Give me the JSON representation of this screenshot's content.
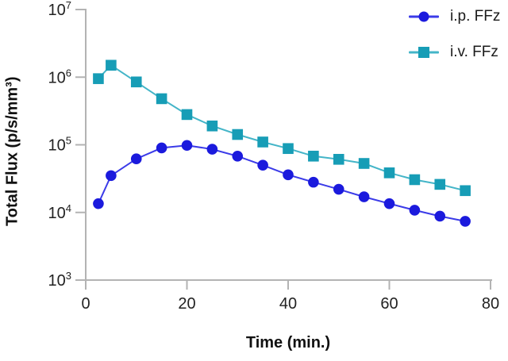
{
  "chart_data": {
    "type": "line",
    "title": "",
    "xlabel": "Time (min.)",
    "ylabel": "Total Flux (p/s/mm³)",
    "y_scale": "log",
    "xlim": [
      0,
      80
    ],
    "ylim": [
      1000,
      10000000
    ],
    "grid": false,
    "legend_position": "top-right",
    "axis_color": "#b3b3b3",
    "tick_text_color": "#222222",
    "x": [
      2.5,
      5,
      10,
      15,
      20,
      25,
      30,
      35,
      40,
      45,
      50,
      55,
      60,
      65,
      70,
      75
    ],
    "series": [
      {
        "name": "i.p. FFz",
        "marker": "circle",
        "marker_color": "#1b1add",
        "line_color": "#3b3be8",
        "values": [
          13500,
          35000,
          62000,
          90000,
          98000,
          86000,
          68000,
          50000,
          36000,
          28000,
          22000,
          17000,
          13500,
          10800,
          8800,
          7400
        ]
      },
      {
        "name": "i.v. FFz",
        "marker": "square",
        "marker_color": "#179db6",
        "line_color": "#44b5c8",
        "values": [
          950000,
          1500000,
          850000,
          480000,
          280000,
          190000,
          142000,
          110000,
          88000,
          68000,
          61000,
          53000,
          38500,
          30500,
          26000,
          21000
        ]
      }
    ],
    "x_ticks": [
      {
        "value": 0,
        "label": "0"
      },
      {
        "value": 20,
        "label": "20"
      },
      {
        "value": 40,
        "label": "40"
      },
      {
        "value": 60,
        "label": "60"
      },
      {
        "value": 80,
        "label": "80"
      }
    ],
    "y_ticks": [
      {
        "value": 1000,
        "label": "10³"
      },
      {
        "value": 10000,
        "label": "10⁴"
      },
      {
        "value": 100000,
        "label": "10⁵"
      },
      {
        "value": 1000000,
        "label": "10⁶"
      },
      {
        "value": 10000000,
        "label": "10⁷"
      }
    ]
  },
  "legend": {
    "items": [
      {
        "label": "i.p. FFz"
      },
      {
        "label": "i.v. FFz"
      }
    ]
  }
}
